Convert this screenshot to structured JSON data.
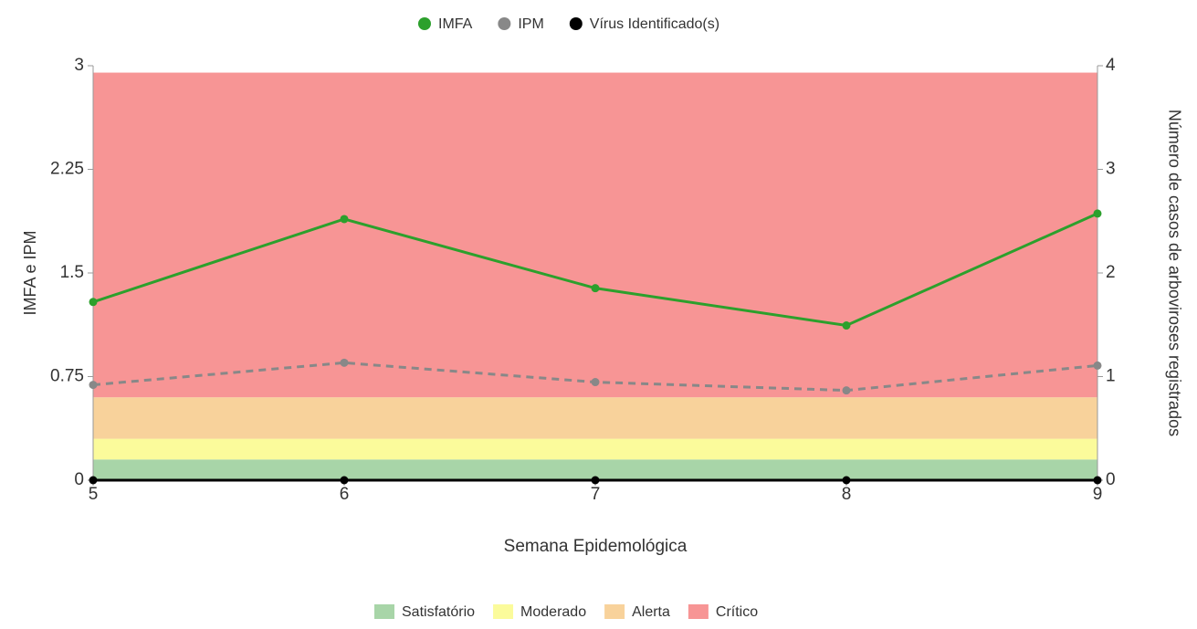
{
  "chart_data": {
    "type": "line",
    "x": [
      5,
      6,
      7,
      8,
      9
    ],
    "xlim": [
      5,
      9
    ],
    "xticks": [
      5,
      6,
      7,
      8,
      9
    ],
    "x_label": "Semana Epidemológica",
    "y_label": "IMFA e IPM",
    "y2_label": "Número de casos de arboviroses registrados",
    "ylim": [
      0,
      3
    ],
    "yticks": [
      0,
      0.75,
      1.5,
      2.25,
      3
    ],
    "y2lim": [
      0,
      4
    ],
    "y2ticks": [
      0,
      1,
      2,
      3,
      4
    ],
    "series": [
      {
        "name": "IMFA",
        "color": "#2ca02c",
        "dash": false,
        "values": [
          1.29,
          1.89,
          1.39,
          1.12,
          1.93
        ]
      },
      {
        "name": "IPM",
        "color": "#888888",
        "dash": true,
        "values": [
          0.69,
          0.85,
          0.71,
          0.65,
          0.83
        ]
      },
      {
        "name": "Vírus Identificado(s)",
        "color": "#000000",
        "dash": false,
        "axis": "y2",
        "values": [
          0,
          0,
          0,
          0,
          0
        ]
      }
    ],
    "bands": [
      {
        "name": "Satisfatório",
        "color": "#a8d5a8",
        "from": 0,
        "to": 0.15
      },
      {
        "name": "Moderado",
        "color": "#fbfb9b",
        "from": 0.15,
        "to": 0.3
      },
      {
        "name": "Alerta",
        "color": "#f8d29b",
        "from": 0.3,
        "to": 0.6
      },
      {
        "name": "Crítico",
        "color": "#f79595",
        "from": 0.6,
        "to": 2.95
      }
    ]
  }
}
